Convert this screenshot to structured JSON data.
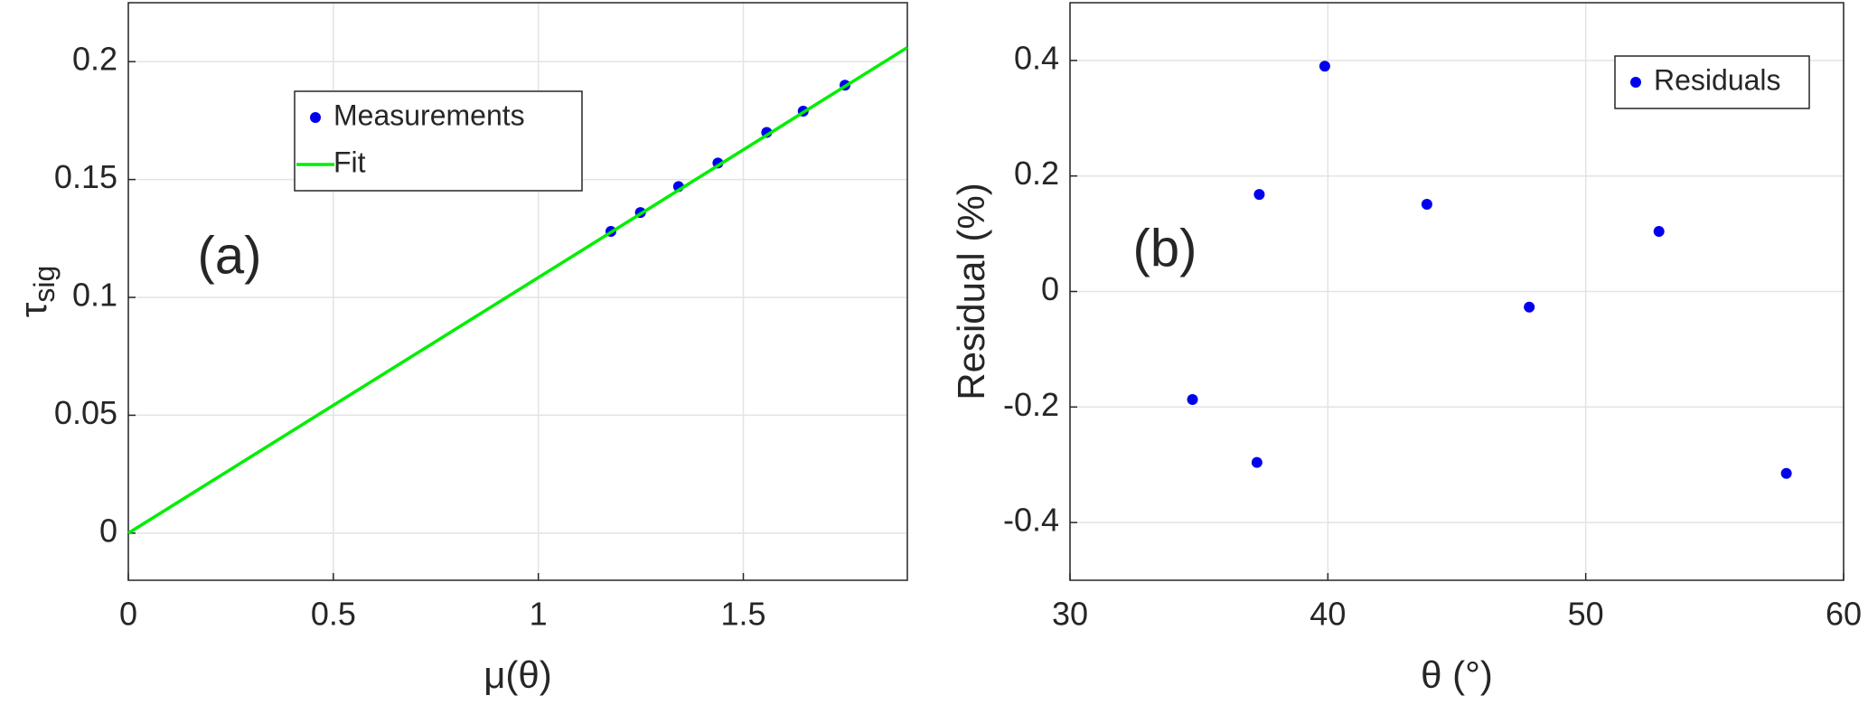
{
  "chart_data": [
    {
      "type": "scatter",
      "annotation": "(a)",
      "xlabel": "μ(θ)",
      "ylabel": "τ",
      "ylabel_subscript": "sig",
      "xlim": [
        0,
        1.9
      ],
      "ylim": [
        -0.02,
        0.225
      ],
      "xticks": [
        0,
        0.5,
        1,
        1.5
      ],
      "yticks": [
        0,
        0.05,
        0.1,
        0.15,
        0.2
      ],
      "grid": true,
      "legend_position": "upper center",
      "series": [
        {
          "name": "Measurements",
          "type": "scatter",
          "color": "#0000ee",
          "x": [
            1.177,
            1.249,
            1.342,
            1.438,
            1.557,
            1.646,
            1.748
          ],
          "values": [
            0.128,
            0.136,
            0.147,
            0.157,
            0.17,
            0.179,
            0.19
          ]
        },
        {
          "name": "Fit",
          "type": "line",
          "color": "#00ee00",
          "x": [
            0,
            1.9
          ],
          "values": [
            0,
            0.206
          ]
        }
      ]
    },
    {
      "type": "scatter",
      "annotation": "(b)",
      "xlabel": "θ (°)",
      "ylabel": "Residual (%)",
      "xlim": [
        30,
        60
      ],
      "ylim": [
        -0.5,
        0.5
      ],
      "xticks": [
        30,
        40,
        50,
        60
      ],
      "yticks": [
        -0.4,
        -0.2,
        0,
        0.2,
        0.4
      ],
      "grid": true,
      "legend_position": "upper right",
      "series": [
        {
          "name": "Residuals",
          "type": "scatter",
          "color": "#0000ee",
          "x": [
            34.75,
            37.25,
            37.34,
            39.88,
            43.84,
            47.81,
            52.84,
            57.78
          ],
          "values": [
            -0.187,
            -0.296,
            0.168,
            0.39,
            0.151,
            -0.027,
            0.104,
            -0.315
          ]
        }
      ]
    }
  ]
}
